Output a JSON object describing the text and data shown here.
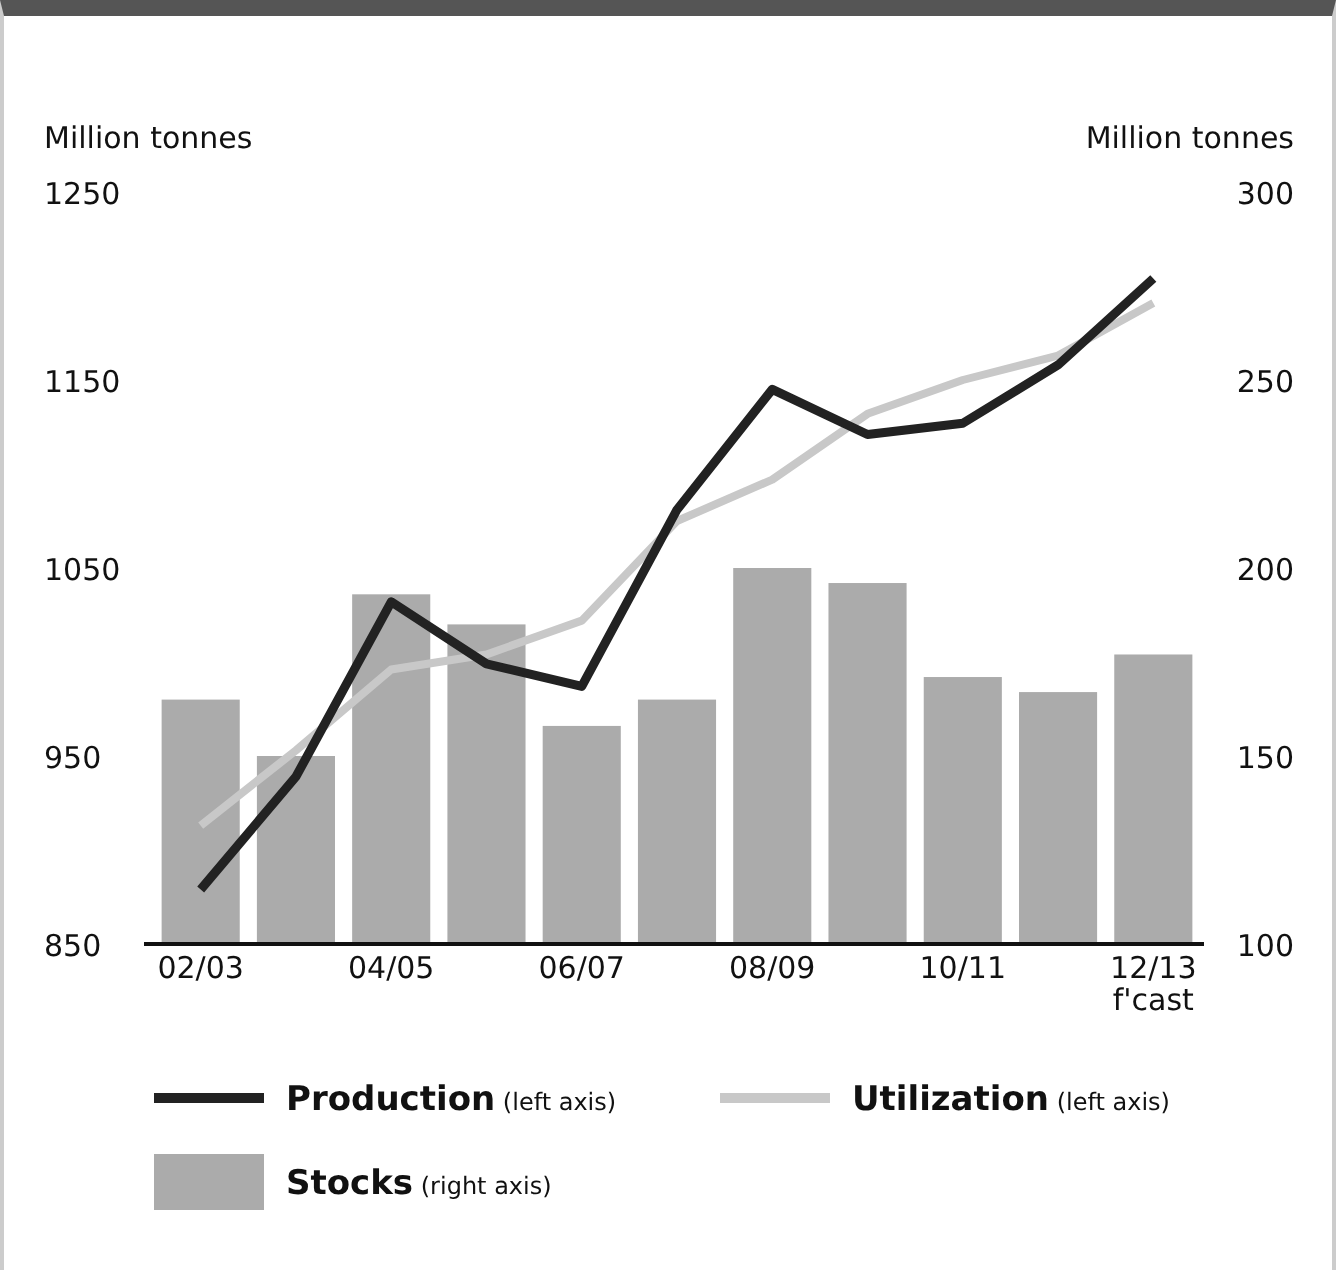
{
  "chart_data": {
    "type": "bar",
    "categories": [
      "02/03",
      null,
      "04/05",
      null,
      "06/07",
      null,
      "08/09",
      null,
      "10/11",
      null,
      "12/13\nf'cast"
    ],
    "ylabel": "Million tonnes",
    "y2label": "Million tonnes",
    "ylim": [
      850,
      1250
    ],
    "yticks": [
      850,
      950,
      1050,
      1150,
      1250
    ],
    "y2lim": [
      100,
      300
    ],
    "y2ticks": [
      100,
      150,
      200,
      250,
      300
    ],
    "series": [
      {
        "name": "Stocks (right axis)",
        "axis": "y2",
        "color": "#ababab",
        "values": [
          165,
          150,
          193,
          185,
          158,
          165,
          200,
          196,
          171,
          167,
          177
        ]
      },
      {
        "name": "Utilization (left axis)",
        "type": "line",
        "color": "#c8c8c8",
        "values": [
          913,
          953,
          996,
          1004,
          1022,
          1075,
          1097,
          1132,
          1150,
          1163,
          1191
        ]
      },
      {
        "name": "Production (left axis)",
        "type": "line",
        "color": "#222222",
        "values": [
          879,
          939,
          1032,
          999,
          987,
          1081,
          1145,
          1121,
          1127,
          1158,
          1204
        ]
      }
    ],
    "legend": "bottom",
    "grid": false
  }
}
